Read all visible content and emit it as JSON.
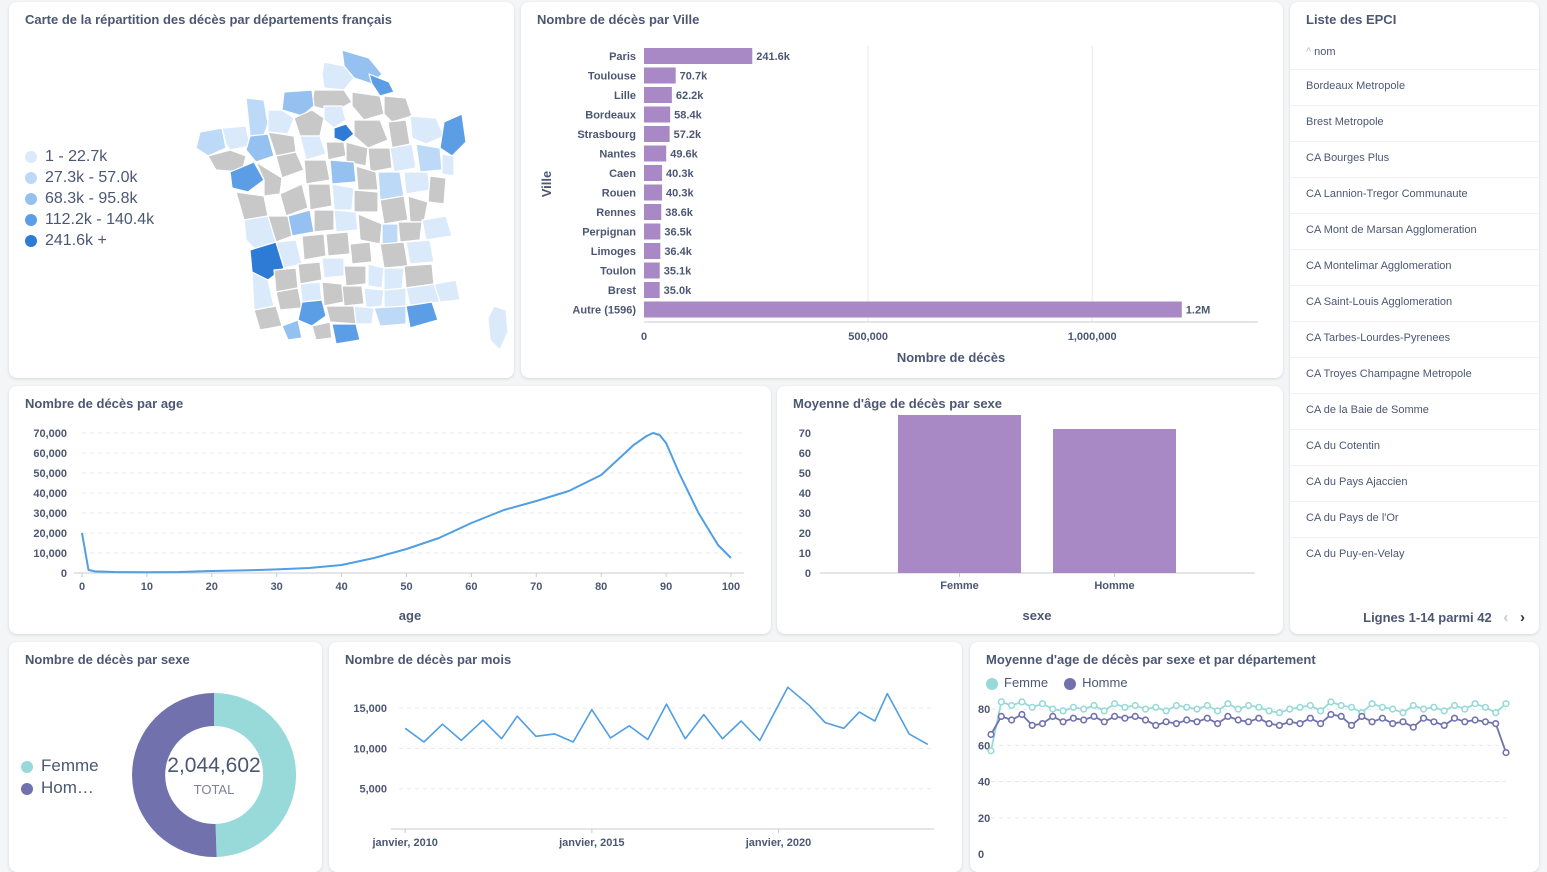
{
  "map_card": {
    "title": "Carte de la répartition des décès par départements français",
    "legend": [
      {
        "label": "1 - 22.7k",
        "color": "#dbeafb"
      },
      {
        "label": "27.3k - 57.0k",
        "color": "#bcd9f7"
      },
      {
        "label": "68.3k - 95.8k",
        "color": "#94c1f0"
      },
      {
        "label": "112.2k - 140.4k",
        "color": "#5b9ee6"
      },
      {
        "label": "241.6k +",
        "color": "#2e7bd6"
      }
    ]
  },
  "ville_card": {
    "title": "Nombre de décès par Ville",
    "chart_data": {
      "type": "bar",
      "orientation": "horizontal",
      "categories": [
        "Paris",
        "Toulouse",
        "Lille",
        "Bordeaux",
        "Strasbourg",
        "Nantes",
        "Caen",
        "Rouen",
        "Rennes",
        "Perpignan",
        "Limoges",
        "Toulon",
        "Brest",
        "Autre (1596)"
      ],
      "values": [
        241600,
        70700,
        62200,
        58400,
        57200,
        49600,
        40300,
        40300,
        38600,
        36500,
        36400,
        35100,
        35000,
        1200000
      ],
      "data_labels": [
        "241.6k",
        "70.7k",
        "62.2k",
        "58.4k",
        "57.2k",
        "49.6k",
        "40.3k",
        "40.3k",
        "38.6k",
        "36.5k",
        "36.4k",
        "35.1k",
        "35.0k",
        "1.2M"
      ],
      "xlabel": "Nombre de décès",
      "ylabel": "Ville",
      "xticks": [
        "0",
        "500,000",
        "1,000,000"
      ],
      "xtick_values": [
        0,
        500000,
        1000000
      ],
      "xlim": [
        0,
        1370000
      ],
      "color": "#a989c5"
    }
  },
  "epci_card": {
    "title": "Liste des EPCI",
    "column": "nom",
    "rows": [
      "Bordeaux Metropole",
      "Brest Metropole",
      "CA Bourges Plus",
      "CA Lannion-Tregor Communaute",
      "CA Mont de Marsan Agglomeration",
      "CA Montelimar Agglomeration",
      "CA Saint-Louis Agglomeration",
      "CA Tarbes-Lourdes-Pyrenees",
      "CA Troyes Champagne Metropole",
      "CA de la Baie de Somme",
      "CA du Cotentin",
      "CA du Pays Ajaccien",
      "CA du Pays de l'Or",
      "CA du Puy-en-Velay"
    ],
    "pagination": "Lignes 1-14 parmi 42",
    "prev_icon": "chevron-left-icon",
    "next_icon": "chevron-right-icon"
  },
  "age_card": {
    "title": "Nombre de décès par age",
    "chart_data": {
      "type": "line",
      "xlabel": "age",
      "xlim": [
        0,
        100
      ],
      "ylim": [
        0,
        70000
      ],
      "xticks": [
        "0",
        "10",
        "20",
        "30",
        "40",
        "50",
        "60",
        "70",
        "80",
        "90",
        "100"
      ],
      "xtick_values": [
        0,
        10,
        20,
        30,
        40,
        50,
        60,
        70,
        80,
        90,
        100
      ],
      "yticks": [
        "0",
        "10,000",
        "20,000",
        "30,000",
        "40,000",
        "50,000",
        "60,000",
        "70,000"
      ],
      "ytick_values": [
        0,
        10000,
        20000,
        30000,
        40000,
        50000,
        60000,
        70000
      ],
      "x": [
        0,
        1,
        2,
        5,
        10,
        15,
        18,
        20,
        25,
        30,
        35,
        40,
        45,
        50,
        55,
        60,
        65,
        70,
        75,
        80,
        83,
        85,
        87,
        88,
        89,
        90,
        92,
        95,
        98,
        100
      ],
      "y": [
        20000,
        1500,
        800,
        500,
        400,
        500,
        800,
        1000,
        1300,
        1800,
        2500,
        4000,
        7500,
        12000,
        17500,
        25000,
        31500,
        36000,
        41000,
        49000,
        58000,
        64000,
        68500,
        70000,
        69000,
        65000,
        50000,
        30000,
        14000,
        7500
      ],
      "color": "#509ee3"
    }
  },
  "avg_sexe_card": {
    "title": "Moyenne d'âge de décès par sexe",
    "chart_data": {
      "type": "bar",
      "categories": [
        "Femme",
        "Homme"
      ],
      "values": [
        79,
        72
      ],
      "xlabel": "sexe",
      "ylim": [
        0,
        80
      ],
      "yticks": [
        "0",
        "10",
        "20",
        "30",
        "40",
        "50",
        "60",
        "70"
      ],
      "ytick_values": [
        0,
        10,
        20,
        30,
        40,
        50,
        60,
        70
      ],
      "color": "#a989c5"
    }
  },
  "sexe_card": {
    "title": "Nombre de décès par sexe",
    "chart_data": {
      "type": "pie",
      "donut": true,
      "categories": [
        "Femme",
        "Homme"
      ],
      "values": [
        1012000,
        1032602
      ],
      "colors": [
        "#98d9d9",
        "#7172ad"
      ]
    },
    "total_value": "2,044,602",
    "total_label": "TOTAL",
    "legend": [
      {
        "label": "Femme",
        "color": "#98d9d9"
      },
      {
        "label": "Hom…",
        "color": "#7172ad"
      }
    ]
  },
  "mois_card": {
    "title": "Nombre de décès par mois",
    "chart_data": {
      "type": "line",
      "xlim": [
        "2009-11",
        "2024-03"
      ],
      "ylim": [
        0,
        17000
      ],
      "xticks": [
        "janvier, 2010",
        "janvier, 2015",
        "janvier, 2020"
      ],
      "xtick_values": [
        "2010-01",
        "2015-01",
        "2020-01"
      ],
      "yticks": [
        "5,000",
        "10,000",
        "15,000"
      ],
      "ytick_values": [
        5000,
        10000,
        15000
      ],
      "x": [
        "2010-01",
        "2010-07",
        "2011-01",
        "2011-07",
        "2012-02",
        "2012-08",
        "2013-01",
        "2013-07",
        "2014-01",
        "2014-07",
        "2015-01",
        "2015-07",
        "2016-01",
        "2016-07",
        "2017-01",
        "2017-07",
        "2018-01",
        "2018-07",
        "2019-01",
        "2019-07",
        "2020-04",
        "2020-11",
        "2021-04",
        "2021-10",
        "2022-03",
        "2022-08",
        "2022-12",
        "2023-07",
        "2024-01"
      ],
      "y": [
        12500,
        10800,
        13000,
        11000,
        13500,
        11200,
        14000,
        11500,
        11800,
        10800,
        14800,
        11300,
        12800,
        11100,
        15500,
        11200,
        14200,
        11200,
        13400,
        11000,
        17600,
        15300,
        13200,
        12500,
        14500,
        13400,
        16800,
        11800,
        10500
      ],
      "color": "#509ee3"
    }
  },
  "dept_card": {
    "title": "Moyenne d'age de décès par sexe et par département",
    "chart_data": {
      "type": "line",
      "ylim": [
        0,
        90
      ],
      "yticks": [
        "0",
        "20",
        "40",
        "60",
        "80"
      ],
      "ytick_values": [
        0,
        20,
        40,
        60,
        80
      ],
      "series": [
        {
          "name": "Femme",
          "color": "#98d9d9",
          "values": [
            57,
            84,
            82,
            84,
            81,
            83,
            80,
            79,
            81,
            80,
            82,
            79,
            83,
            81,
            82,
            80,
            81,
            79,
            82,
            81,
            80,
            82,
            79,
            83,
            80,
            82,
            81,
            79,
            78,
            80,
            81,
            82,
            79,
            84,
            82,
            81,
            78,
            83,
            81,
            80,
            78,
            82,
            80,
            81,
            79,
            82,
            80,
            83,
            81,
            78,
            83
          ]
        },
        {
          "name": "Homme",
          "color": "#7172ad",
          "values": [
            66,
            76,
            74,
            77,
            71,
            72,
            76,
            73,
            75,
            74,
            76,
            73,
            76,
            75,
            76,
            74,
            71,
            73,
            72,
            74,
            73,
            75,
            72,
            76,
            74,
            73,
            75,
            72,
            71,
            73,
            72,
            75,
            72,
            77,
            76,
            71,
            76,
            73,
            75,
            72,
            73,
            70,
            75,
            73,
            71,
            75,
            73,
            74,
            73,
            72,
            56
          ]
        }
      ]
    }
  }
}
